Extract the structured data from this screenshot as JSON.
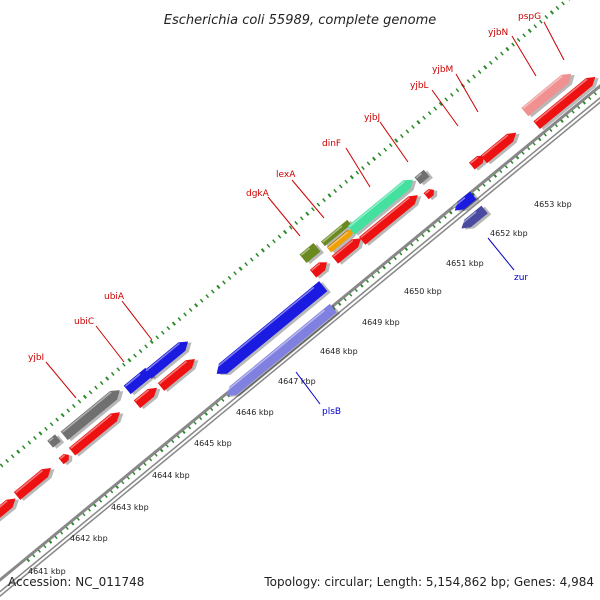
{
  "title": "Escherichia coli 55989, complete genome",
  "footer": {
    "accession": "Accession: NC_011748",
    "summary": "Topology: circular; Length: 5,154,862 bp; Genes: 4,984"
  },
  "colors": {
    "forward_gene": "#ee1111",
    "reverse_gene_blue": "#1a1ae0",
    "reverse_gene_lavender": "#8080e0",
    "reverse_gene_navy": "#4a4aa0",
    "gray_gene": "#707070",
    "green_gene": "#44e0a0",
    "olive_gene": "#6a8a20",
    "orange_gene": "#f0a000",
    "pink_gene": "#f09090",
    "backbone": "#888888",
    "tick": "#2a8a2a",
    "label_forward": "#cc0000",
    "label_reverse": "#0000cc"
  },
  "kbp_labels": [
    "4641 kbp",
    "4642 kbp",
    "4643 kbp",
    "4644 kbp",
    "4645 kbp",
    "4646 kbp",
    "4647 kbp",
    "4648 kbp",
    "4649 kbp",
    "4650 kbp",
    "4651 kbp",
    "4652 kbp",
    "4653 kbp"
  ],
  "forward_gene_labels": [
    "yjbI",
    "ubiC",
    "ubiA",
    "dgkA",
    "lexA",
    "dinF",
    "yjbJ",
    "yjbL",
    "yjbM",
    "yjbN",
    "pspG"
  ],
  "reverse_gene_labels": [
    "plsB",
    "zur"
  ]
}
